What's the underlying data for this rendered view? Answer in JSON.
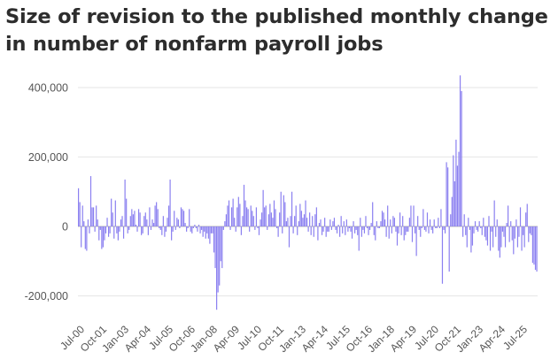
{
  "chart_data": {
    "type": "bar",
    "title": "Size of revision to the published monthly change in number of nonfarm payroll jobs",
    "xlabel": "",
    "ylabel": "",
    "ylim": [
      -240000,
      450000
    ],
    "y_ticks": [
      400000,
      200000,
      0,
      -200000
    ],
    "y_tick_labels": [
      "400,000",
      "200,000",
      "0",
      "-200,000"
    ],
    "x_start": "2000-07",
    "x_tick_labels": [
      "Jul-00",
      "Oct-01",
      "Jan-03",
      "Apr-04",
      "Jul-05",
      "Oct-06",
      "Jan-08",
      "Apr-09",
      "Jul-10",
      "Oct-11",
      "Jan-13",
      "Apr-14",
      "Jul-15",
      "Oct-16",
      "Jan-18",
      "Apr-19",
      "Jul-20",
      "Oct-21",
      "Jan-23",
      "Apr-24",
      "Jul-25"
    ],
    "grid": true,
    "bar_color": "#8b80f0",
    "series": [
      {
        "values": [
          110000,
          70000,
          -60000,
          60000,
          15000,
          -65000,
          -70000,
          20000,
          -20000,
          145000,
          55000,
          55000,
          -15000,
          60000,
          20000,
          -40000,
          -10000,
          -65000,
          -60000,
          -40000,
          -20000,
          25000,
          -30000,
          -20000,
          80000,
          40000,
          -35000,
          75000,
          -20000,
          -40000,
          -15000,
          20000,
          30000,
          -35000,
          135000,
          80000,
          -20000,
          -10000,
          30000,
          50000,
          35000,
          45000,
          5000,
          -15000,
          50000,
          40000,
          -25000,
          -20000,
          30000,
          40000,
          20000,
          -25000,
          55000,
          -10000,
          20000,
          10000,
          60000,
          70000,
          50000,
          -5000,
          -10000,
          -25000,
          30000,
          -30000,
          -15000,
          25000,
          60000,
          135000,
          -40000,
          -15000,
          45000,
          -10000,
          25000,
          20000,
          -5000,
          55000,
          50000,
          45000,
          10000,
          -15000,
          -5000,
          50000,
          -15000,
          -20000,
          -5000,
          5000,
          -5000,
          -15000,
          5000,
          -20000,
          -10000,
          -30000,
          -15000,
          -35000,
          -20000,
          -35000,
          -50000,
          -20000,
          -20000,
          -75000,
          -120000,
          -240000,
          -190000,
          -170000,
          -100000,
          -120000,
          -10000,
          15000,
          35000,
          60000,
          75000,
          -10000,
          55000,
          80000,
          25000,
          -15000,
          55000,
          85000,
          65000,
          -25000,
          30000,
          120000,
          75000,
          55000,
          50000,
          -15000,
          60000,
          45000,
          30000,
          -10000,
          55000,
          -5000,
          -25000,
          20000,
          40000,
          105000,
          55000,
          60000,
          -10000,
          35000,
          65000,
          40000,
          25000,
          75000,
          50000,
          -5000,
          -30000,
          40000,
          100000,
          -20000,
          90000,
          70000,
          15000,
          25000,
          -60000,
          30000,
          100000,
          -20000,
          30000,
          60000,
          -25000,
          15000,
          65000,
          45000,
          25000,
          35000,
          75000,
          25000,
          -15000,
          40000,
          -25000,
          30000,
          -30000,
          35000,
          55000,
          -40000,
          10000,
          20000,
          -25000,
          -15000,
          25000,
          -30000,
          -15000,
          -15000,
          20000,
          -10000,
          15000,
          25000,
          -10000,
          -20000,
          5000,
          -30000,
          30000,
          -20000,
          15000,
          -25000,
          20000,
          -15000,
          -5000,
          -15000,
          -35000,
          15000,
          -20000,
          -10000,
          -25000,
          -70000,
          25000,
          -30000,
          -10000,
          -20000,
          30000,
          -5000,
          -25000,
          -10000,
          10000,
          70000,
          -25000,
          -40000,
          15000,
          -5000,
          -5000,
          15000,
          45000,
          40000,
          20000,
          -30000,
          60000,
          -35000,
          20000,
          -20000,
          30000,
          25000,
          -15000,
          -55000,
          -20000,
          40000,
          -25000,
          30000,
          -40000,
          -25000,
          -15000,
          -15000,
          25000,
          60000,
          -45000,
          60000,
          -20000,
          -85000,
          30000,
          -10000,
          -30000,
          -5000,
          50000,
          -10000,
          -15000,
          40000,
          -20000,
          20000,
          -10000,
          -20000,
          20000,
          -5000,
          -5000,
          25000,
          -5000,
          50000,
          -165000,
          -10000,
          -20000,
          185000,
          170000,
          -130000,
          35000,
          85000,
          205000,
          130000,
          250000,
          175000,
          215000,
          435000,
          390000,
          -30000,
          35000,
          -25000,
          -60000,
          25000,
          -10000,
          -75000,
          -55000,
          -20000,
          15000,
          -10000,
          -15000,
          15000,
          -5000,
          -25000,
          25000,
          -30000,
          -40000,
          -55000,
          30000,
          -70000,
          -15000,
          -60000,
          75000,
          -30000,
          20000,
          -70000,
          -90000,
          -60000,
          -15000,
          -30000,
          -60000,
          10000,
          60000,
          -45000,
          15000,
          -40000,
          -80000,
          -35000,
          20000,
          -60000,
          -30000,
          55000,
          -70000,
          -25000,
          -60000,
          40000,
          65000,
          -45000,
          -20000,
          -25000,
          -105000,
          -110000,
          -125000,
          -130000
        ]
      }
    ]
  }
}
